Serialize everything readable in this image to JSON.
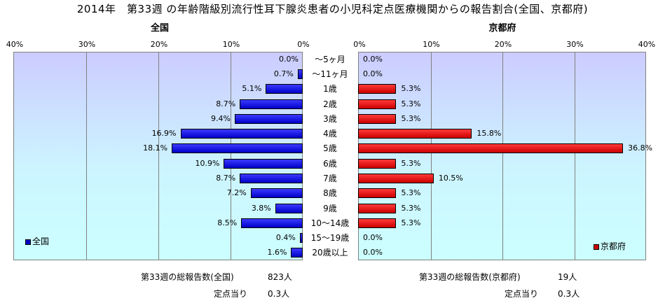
{
  "title": "2014年　第33週 の年齢階級別流行性耳下腺炎患者の小児科定点医療機関からの報告割合(全国、京都府)",
  "chart_data": {
    "type": "bar",
    "orientation": "horizontal",
    "categories": [
      "～5ヶ月",
      "～11ヶ月",
      "1歳",
      "2歳",
      "3歳",
      "4歳",
      "5歳",
      "6歳",
      "7歳",
      "8歳",
      "9歳",
      "10～14歳",
      "15～19歳",
      "20歳以上"
    ],
    "xlim": [
      0,
      40
    ],
    "grid": true,
    "panels": [
      {
        "panel_title": "全国",
        "direction": "reversed",
        "ticks": [
          "40%",
          "30%",
          "20%",
          "10%",
          "0%"
        ],
        "series": [
          {
            "name": "全国",
            "color": "#0000c8",
            "values": [
              0.0,
              0.7,
              5.1,
              8.7,
              9.4,
              16.9,
              18.1,
              10.9,
              8.7,
              7.2,
              3.8,
              8.5,
              0.4,
              1.6
            ],
            "labels": [
              "0.0%",
              "0.7%",
              "5.1%",
              "8.7%",
              "9.4%",
              "16.9%",
              "18.1%",
              "10.9%",
              "8.7%",
              "7.2%",
              "3.8%",
              "8.5%",
              "0.4%",
              "1.6%"
            ]
          }
        ],
        "legend": "bottom-left"
      },
      {
        "panel_title": "京都府",
        "direction": "normal",
        "ticks": [
          "0%",
          "10%",
          "20%",
          "30%",
          "40%"
        ],
        "series": [
          {
            "name": "京都府",
            "color": "#cc0000",
            "values": [
              0.0,
              0.0,
              5.3,
              5.3,
              5.3,
              15.8,
              36.8,
              5.3,
              10.5,
              5.3,
              5.3,
              5.3,
              0.0,
              0.0
            ],
            "labels": [
              "0.0%",
              "0.0%",
              "5.3%",
              "5.3%",
              "5.3%",
              "15.8%",
              "36.8%",
              "5.3%",
              "10.5%",
              "5.3%",
              "5.3%",
              "5.3%",
              "0.0%",
              "0.0%"
            ]
          }
        ],
        "legend": "bottom-right"
      }
    ]
  },
  "footer": {
    "national_total_label": "第33週の総報告数(全国)",
    "national_total_value": "823人",
    "national_per_label": "定点当り",
    "national_per_value": "0.3人",
    "kyoto_total_label": "第33週の総報告数(京都府)",
    "kyoto_total_value": "19人",
    "kyoto_per_label": "定点当り",
    "kyoto_per_value": "0.3人"
  }
}
